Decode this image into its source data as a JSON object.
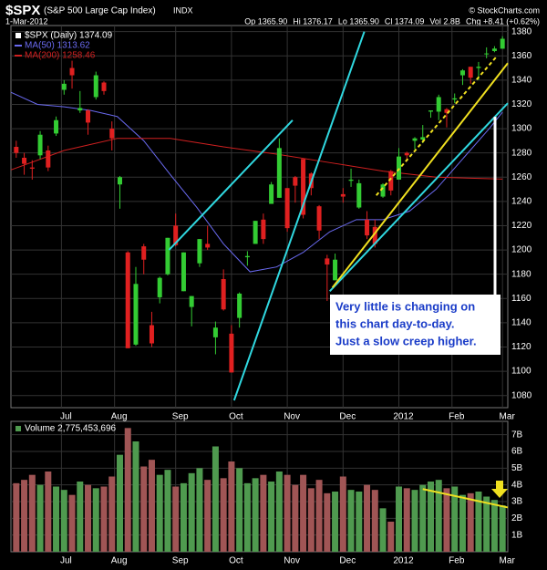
{
  "header": {
    "symbol": "$SPX",
    "name": "(S&P 500 Large Cap Index)",
    "exchange": "INDX",
    "copyright": "© StockCharts.com",
    "date": "1-Mar-2012",
    "quote": [
      "Op 1365.90",
      "Hi 1376.17",
      "Lo 1365.90",
      "Cl 1374.09",
      "Vol 2.8B",
      "Chg +8.41 (+0.62%)"
    ]
  },
  "chart_data": [
    {
      "type": "candlestick",
      "name": "$SPX (Daily) 1374.09",
      "up_color": "#33cc33",
      "down_color": "#e02020",
      "grid": true,
      "xlim": [
        0,
        187
      ],
      "ylim": [
        1070,
        1385
      ],
      "yticks": [
        1080,
        1100,
        1120,
        1140,
        1160,
        1180,
        1200,
        1220,
        1240,
        1260,
        1280,
        1300,
        1320,
        1340,
        1360,
        1380
      ],
      "xticks": [
        {
          "value": 19,
          "label": "Jul"
        },
        {
          "value": 39,
          "label": "Aug"
        },
        {
          "value": 62,
          "label": "Sep"
        },
        {
          "value": 83,
          "label": "Oct"
        },
        {
          "value": 104,
          "label": "Nov"
        },
        {
          "value": 125,
          "label": "Dec"
        },
        {
          "value": 146,
          "label": "2012"
        },
        {
          "value": 166,
          "label": "Feb"
        },
        {
          "value": 185,
          "label": "Mar"
        }
      ],
      "x": [
        2,
        5,
        8,
        11,
        14,
        17,
        20,
        23,
        26,
        29,
        32,
        35,
        38,
        41,
        44,
        47,
        50,
        53,
        56,
        59,
        62,
        65,
        68,
        71,
        74,
        77,
        80,
        83,
        86,
        89,
        92,
        95,
        98,
        101,
        104,
        107,
        110,
        113,
        116,
        119,
        122,
        125,
        128,
        131,
        134,
        137,
        140,
        143,
        146,
        149,
        152,
        155,
        158,
        161,
        164,
        167,
        170,
        173,
        176,
        179,
        182,
        185
      ],
      "open": [
        1285,
        1276,
        1268,
        1278,
        1282,
        1296,
        1332,
        1350,
        1315,
        1315,
        1326,
        1338,
        1300,
        1254,
        1198,
        1122,
        1203,
        1138,
        1161,
        1180,
        1220,
        1166,
        1153,
        1189,
        1205,
        1128,
        1176,
        1131,
        1144,
        1194,
        1205,
        1225,
        1238,
        1243,
        1251,
        1260,
        1275,
        1263,
        1236,
        1193,
        1175,
        1246,
        1257,
        1235,
        1225,
        1219,
        1244,
        1265,
        1258,
        1280,
        1290,
        1291,
        1314,
        1314,
        1316,
        1324,
        1344,
        1351,
        1350,
        1362,
        1364,
        1365.9
      ],
      "high": [
        1290,
        1280,
        1274,
        1298,
        1286,
        1310,
        1340,
        1356,
        1331,
        1316,
        1347,
        1339,
        1306,
        1261,
        1199,
        1186,
        1205,
        1149,
        1178,
        1210,
        1230,
        1198,
        1162,
        1209,
        1220,
        1141,
        1184,
        1138,
        1165,
        1199,
        1224,
        1230,
        1256,
        1292,
        1251,
        1261,
        1275,
        1264,
        1237,
        1196,
        1197,
        1251,
        1267,
        1258,
        1232,
        1225,
        1255,
        1266,
        1284,
        1281,
        1293,
        1303,
        1315,
        1328,
        1317,
        1329,
        1349,
        1351,
        1355,
        1367,
        1368,
        1376.17
      ],
      "low": [
        1276,
        1262,
        1258,
        1275,
        1265,
        1294,
        1328,
        1333,
        1313,
        1295,
        1324,
        1328,
        1282,
        1234,
        1119,
        1121,
        1180,
        1120,
        1156,
        1179,
        1203,
        1166,
        1137,
        1186,
        1200,
        1114,
        1150,
        1099,
        1136,
        1187,
        1205,
        1205,
        1238,
        1243,
        1215,
        1239,
        1226,
        1245,
        1209,
        1158,
        1175,
        1239,
        1252,
        1234,
        1209,
        1202,
        1243,
        1245,
        1258,
        1273,
        1283,
        1288,
        1309,
        1307,
        1301,
        1321,
        1336,
        1337,
        1340,
        1358,
        1363,
        1365.9
      ],
      "close": [
        1280,
        1271,
        1267,
        1295,
        1268,
        1307,
        1337,
        1344,
        1317,
        1305,
        1344,
        1331,
        1292,
        1260,
        1119,
        1172,
        1192,
        1123,
        1177,
        1210,
        1204,
        1198,
        1162,
        1209,
        1202,
        1136,
        1151,
        1099,
        1164,
        1195,
        1224,
        1209,
        1254,
        1284,
        1218,
        1253,
        1229,
        1251,
        1216,
        1188,
        1192,
        1244,
        1258,
        1255,
        1212,
        1205,
        1254,
        1249,
        1277,
        1278,
        1292,
        1293,
        1315,
        1326,
        1313,
        1325,
        1348,
        1342,
        1351,
        1362,
        1366,
        1374.09
      ],
      "overlays": [
        {
          "name": "MA(50) 1313.62",
          "color": "#6a6af0",
          "x": [
            0,
            10,
            20,
            30,
            40,
            50,
            60,
            70,
            80,
            90,
            100,
            110,
            120,
            130,
            140,
            150,
            160,
            170,
            180,
            185
          ],
          "values": [
            1330,
            1320,
            1318,
            1315,
            1310,
            1290,
            1262,
            1235,
            1205,
            1182,
            1186,
            1198,
            1215,
            1225,
            1225,
            1232,
            1250,
            1275,
            1300,
            1313.62
          ]
        },
        {
          "name": "MA(200) 1258.46",
          "color": "#d02020",
          "x": [
            0,
            20,
            40,
            60,
            80,
            100,
            120,
            140,
            160,
            185
          ],
          "values": [
            1266,
            1282,
            1292,
            1292,
            1285,
            1279,
            1272,
            1265,
            1260,
            1258.46
          ]
        }
      ],
      "trendlines": [
        {
          "color": "#30d8e0",
          "dashed": false,
          "x": [
            84,
            133
          ],
          "values": [
            1076,
            1380
          ]
        },
        {
          "color": "#30d8e0",
          "dashed": false,
          "x": [
            59.5,
            106
          ],
          "values": [
            1200,
            1307
          ]
        },
        {
          "color": "#30d8e0",
          "dashed": false,
          "x": [
            120,
            187
          ],
          "values": [
            1166,
            1321
          ]
        },
        {
          "color": "#f0e020",
          "dashed": false,
          "x": [
            121,
            187
          ],
          "values": [
            1169,
            1354
          ]
        },
        {
          "color": "#f0e020",
          "dashed": true,
          "x": [
            137.5,
            183
          ],
          "values": [
            1245,
            1360
          ]
        }
      ],
      "annotation": [
        "Very little is changing on",
        "this chart day-to-day.",
        "Just a slow creep higher."
      ]
    },
    {
      "type": "bar",
      "name": "Volume 2,775,453,696",
      "up_color": "#4f9a4f",
      "down_color": "#a05555",
      "grid": true,
      "xlim": [
        0,
        187
      ],
      "ylim": [
        0,
        7.8
      ],
      "yticks": [
        {
          "value": 1,
          "label": "1B"
        },
        {
          "value": 2,
          "label": "2B"
        },
        {
          "value": 3,
          "label": "3B"
        },
        {
          "value": 4,
          "label": "4B"
        },
        {
          "value": 5,
          "label": "5B"
        },
        {
          "value": 6,
          "label": "6B"
        },
        {
          "value": 7,
          "label": "7B"
        }
      ],
      "xticks": [
        {
          "value": 19,
          "label": "Jul"
        },
        {
          "value": 39,
          "label": "Aug"
        },
        {
          "value": 62,
          "label": "Sep"
        },
        {
          "value": 83,
          "label": "Oct"
        },
        {
          "value": 104,
          "label": "Nov"
        },
        {
          "value": 125,
          "label": "Dec"
        },
        {
          "value": 146,
          "label": "2012"
        },
        {
          "value": 166,
          "label": "Feb"
        },
        {
          "value": 185,
          "label": "Mar"
        }
      ],
      "x": [
        2,
        5,
        8,
        11,
        14,
        17,
        20,
        23,
        26,
        29,
        32,
        35,
        38,
        41,
        44,
        47,
        50,
        53,
        56,
        59,
        62,
        65,
        68,
        71,
        74,
        77,
        80,
        83,
        86,
        89,
        92,
        95,
        98,
        101,
        104,
        107,
        110,
        113,
        116,
        119,
        122,
        125,
        128,
        131,
        134,
        137,
        140,
        143,
        146,
        149,
        152,
        155,
        158,
        161,
        164,
        167,
        170,
        173,
        176,
        179,
        182,
        185
      ],
      "values": [
        4.1,
        4.3,
        4.6,
        4.0,
        4.8,
        3.9,
        3.7,
        3.4,
        4.2,
        4.0,
        3.8,
        3.9,
        4.5,
        5.8,
        7.4,
        6.6,
        5.1,
        5.5,
        4.6,
        4.9,
        3.9,
        4.1,
        4.7,
        5.0,
        4.3,
        6.3,
        4.4,
        5.4,
        5.0,
        4.1,
        4.4,
        4.6,
        4.2,
        4.8,
        4.6,
        4.0,
        4.6,
        3.8,
        4.3,
        3.5,
        3.6,
        4.5,
        3.7,
        3.6,
        4.0,
        3.7,
        2.6,
        1.8,
        3.9,
        3.8,
        3.7,
        4.0,
        4.2,
        4.3,
        3.8,
        3.9,
        3.4,
        3.5,
        3.6,
        3.3,
        3.1,
        2.775453696
      ],
      "trendlines": [
        {
          "color": "#f0e020",
          "dashed": false,
          "x": [
            155,
            187
          ],
          "values": [
            3.75,
            2.65
          ]
        }
      ]
    }
  ]
}
